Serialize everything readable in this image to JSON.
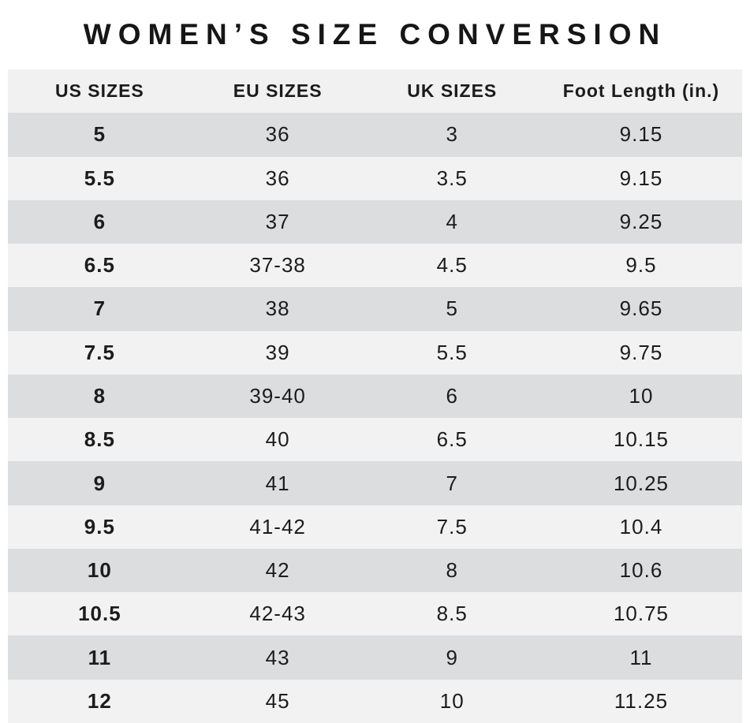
{
  "title": "WOMEN’S SIZE CONVERSION",
  "colors": {
    "page_bg": "#ffffff",
    "header_bg": "#f1f1f1",
    "row_dark": "#dcddde",
    "row_light": "#f2f2f3",
    "text": "#1c1c1c"
  },
  "chart_data": {
    "type": "table",
    "title": "WOMEN’S SIZE CONVERSION",
    "columns": [
      "US SIZES",
      "EU SIZES",
      "UK SIZES",
      "Foot Length (in.)"
    ],
    "rows": [
      [
        "5",
        "36",
        "3",
        "9.15"
      ],
      [
        "5.5",
        "36",
        "3.5",
        "9.15"
      ],
      [
        "6",
        "37",
        "4",
        "9.25"
      ],
      [
        "6.5",
        "37-38",
        "4.5",
        "9.5"
      ],
      [
        "7",
        "38",
        "5",
        "9.65"
      ],
      [
        "7.5",
        "39",
        "5.5",
        "9.75"
      ],
      [
        "8",
        "39-40",
        "6",
        "10"
      ],
      [
        "8.5",
        "40",
        "6.5",
        "10.15"
      ],
      [
        "9",
        "41",
        "7",
        "10.25"
      ],
      [
        "9.5",
        "41-42",
        "7.5",
        "10.4"
      ],
      [
        "10",
        "42",
        "8",
        "10.6"
      ],
      [
        "10.5",
        "42-43",
        "8.5",
        "10.75"
      ],
      [
        "11",
        "43",
        "9",
        "11"
      ],
      [
        "12",
        "45",
        "10",
        "11.25"
      ]
    ],
    "layout": {
      "stripe_pattern": "first data row dark, alternating",
      "grid": false,
      "text_align": "center"
    }
  }
}
